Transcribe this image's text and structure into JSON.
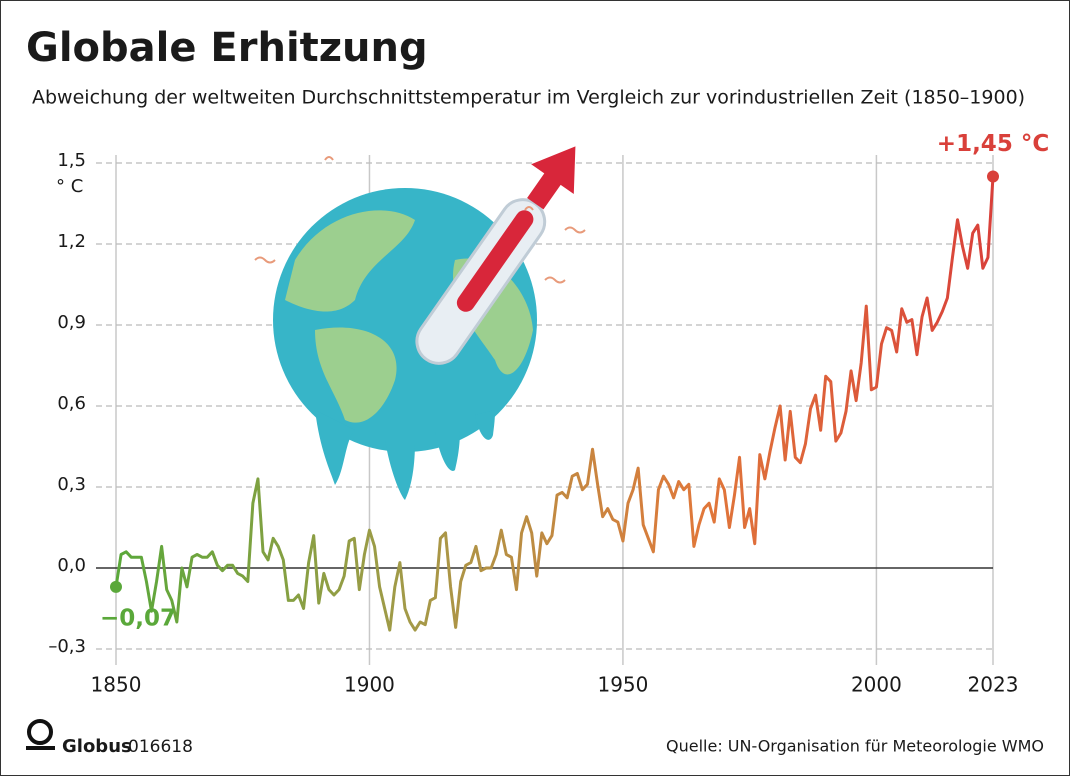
{
  "chart_data": {
    "type": "line",
    "title": "Globale Erhitzung",
    "subtitle": "Abweichung der weltweiten Durchschnittstemperatur im Vergleich zur vorindustriellen Zeit (1850–1900)",
    "y_unit": "° C",
    "source": "Quelle: UN-Organisation für Meteorologie WMO",
    "logo": "Globus",
    "code": "016618",
    "x": [
      1850,
      1851,
      1852,
      1853,
      1854,
      1855,
      1856,
      1857,
      1858,
      1859,
      1860,
      1861,
      1862,
      1863,
      1864,
      1865,
      1866,
      1867,
      1868,
      1869,
      1870,
      1871,
      1872,
      1873,
      1874,
      1875,
      1876,
      1877,
      1878,
      1879,
      1880,
      1881,
      1882,
      1883,
      1884,
      1885,
      1886,
      1887,
      1888,
      1889,
      1890,
      1891,
      1892,
      1893,
      1894,
      1895,
      1896,
      1897,
      1898,
      1899,
      1900,
      1901,
      1902,
      1903,
      1904,
      1905,
      1906,
      1907,
      1908,
      1909,
      1910,
      1911,
      1912,
      1913,
      1914,
      1915,
      1916,
      1917,
      1918,
      1919,
      1920,
      1921,
      1922,
      1923,
      1924,
      1925,
      1926,
      1927,
      1928,
      1929,
      1930,
      1931,
      1932,
      1933,
      1934,
      1935,
      1936,
      1937,
      1938,
      1939,
      1940,
      1941,
      1942,
      1943,
      1944,
      1945,
      1946,
      1947,
      1948,
      1949,
      1950,
      1951,
      1952,
      1953,
      1954,
      1955,
      1956,
      1957,
      1958,
      1959,
      1960,
      1961,
      1962,
      1963,
      1964,
      1965,
      1966,
      1967,
      1968,
      1969,
      1970,
      1971,
      1972,
      1973,
      1974,
      1975,
      1976,
      1977,
      1978,
      1979,
      1980,
      1981,
      1982,
      1983,
      1984,
      1985,
      1986,
      1987,
      1988,
      1989,
      1990,
      1991,
      1992,
      1993,
      1994,
      1995,
      1996,
      1997,
      1998,
      1999,
      2000,
      2001,
      2002,
      2003,
      2004,
      2005,
      2006,
      2007,
      2008,
      2009,
      2010,
      2011,
      2012,
      2013,
      2014,
      2015,
      2016,
      2017,
      2018,
      2019,
      2020,
      2021,
      2022,
      2023
    ],
    "series": [
      {
        "gradient": [
          "#5aa83a",
          "#a39a48",
          "#e0783a",
          "#d9403a"
        ],
        "values": [
          -0.07,
          0.05,
          0.06,
          0.04,
          0.04,
          0.04,
          -0.05,
          -0.16,
          -0.05,
          0.08,
          -0.08,
          -0.12,
          -0.2,
          0.0,
          -0.07,
          0.04,
          0.05,
          0.04,
          0.04,
          0.06,
          0.01,
          -0.01,
          0.01,
          0.01,
          -0.02,
          -0.03,
          -0.05,
          0.24,
          0.33,
          0.06,
          0.03,
          0.11,
          0.08,
          0.03,
          -0.12,
          -0.12,
          -0.1,
          -0.15,
          0.02,
          0.12,
          -0.13,
          -0.02,
          -0.08,
          -0.1,
          -0.08,
          -0.03,
          0.1,
          0.11,
          -0.08,
          0.05,
          0.14,
          0.08,
          -0.07,
          -0.15,
          -0.23,
          -0.07,
          0.02,
          -0.15,
          -0.2,
          -0.23,
          -0.2,
          -0.21,
          -0.12,
          -0.11,
          0.11,
          0.13,
          -0.07,
          -0.22,
          -0.05,
          0.01,
          0.02,
          0.08,
          -0.01,
          0.0,
          0.0,
          0.05,
          0.14,
          0.05,
          0.04,
          -0.08,
          0.13,
          0.19,
          0.13,
          -0.03,
          0.13,
          0.09,
          0.12,
          0.27,
          0.28,
          0.26,
          0.34,
          0.35,
          0.29,
          0.31,
          0.44,
          0.31,
          0.19,
          0.22,
          0.18,
          0.17,
          0.1,
          0.24,
          0.29,
          0.37,
          0.16,
          0.11,
          0.06,
          0.29,
          0.34,
          0.31,
          0.26,
          0.32,
          0.29,
          0.31,
          0.08,
          0.16,
          0.22,
          0.24,
          0.17,
          0.33,
          0.29,
          0.15,
          0.27,
          0.41,
          0.15,
          0.22,
          0.09,
          0.42,
          0.33,
          0.43,
          0.52,
          0.6,
          0.4,
          0.58,
          0.41,
          0.39,
          0.46,
          0.59,
          0.64,
          0.51,
          0.71,
          0.69,
          0.47,
          0.5,
          0.58,
          0.73,
          0.62,
          0.76,
          0.97,
          0.66,
          0.67,
          0.83,
          0.89,
          0.88,
          0.8,
          0.96,
          0.91,
          0.92,
          0.79,
          0.93,
          1.0,
          0.88,
          0.91,
          0.95,
          1.0,
          1.15,
          1.29,
          1.19,
          1.11,
          1.24,
          1.27,
          1.11,
          1.15,
          1.45
        ],
        "value_labels": [
          "−0,07",
          null,
          null,
          null,
          null,
          null,
          null,
          null,
          null,
          null,
          null,
          null,
          null,
          null,
          null,
          null,
          null,
          null,
          null,
          null,
          null,
          null,
          null,
          null,
          null,
          null,
          null,
          null,
          null,
          null,
          null,
          null,
          null,
          null,
          null,
          null,
          null,
          null,
          null,
          null,
          null,
          null,
          null,
          null,
          null,
          null,
          null,
          null,
          null,
          null,
          null,
          null,
          null,
          null,
          null,
          null,
          null,
          null,
          null,
          null,
          null,
          null,
          null,
          null,
          null,
          null,
          null,
          null,
          null,
          null,
          null,
          null,
          null,
          null,
          null,
          null,
          null,
          null,
          null,
          null,
          null,
          null,
          null,
          null,
          null,
          null,
          null,
          null,
          null,
          null,
          null,
          null,
          null,
          null,
          null,
          null,
          null,
          null,
          null,
          null,
          null,
          null,
          null,
          null,
          null,
          null,
          null,
          null,
          null,
          null,
          null,
          null,
          null,
          null,
          null,
          null,
          null,
          null,
          null,
          null,
          null,
          null,
          null,
          null,
          null,
          null,
          null,
          null,
          null,
          null,
          null,
          null,
          null,
          null,
          null,
          null,
          null,
          null,
          null,
          null,
          null,
          null,
          null,
          null,
          null,
          null,
          null,
          null,
          null,
          null,
          null,
          null,
          null,
          null,
          null,
          null,
          null,
          null,
          null,
          null,
          null,
          null,
          null,
          null,
          null,
          null,
          null,
          null,
          null,
          null,
          null,
          null,
          null,
          "+1,45 °C"
        ]
      }
    ],
    "xlim": [
      1850,
      2023
    ],
    "ylim": [
      -0.3,
      1.5
    ],
    "xticks": [
      1850,
      1900,
      1950,
      2000,
      2023
    ],
    "yticks": [
      {
        "value": -0.3,
        "label": "–0,3"
      },
      {
        "value": 0,
        "label": "0,0"
      },
      {
        "value": 0.3,
        "label": "0,3"
      },
      {
        "value": 0.6,
        "label": "0,6"
      },
      {
        "value": 0.9,
        "label": "0,9"
      },
      {
        "value": 1.2,
        "label": "1,2"
      },
      {
        "value": 1.5,
        "label": "1,5"
      }
    ],
    "grid": true
  }
}
